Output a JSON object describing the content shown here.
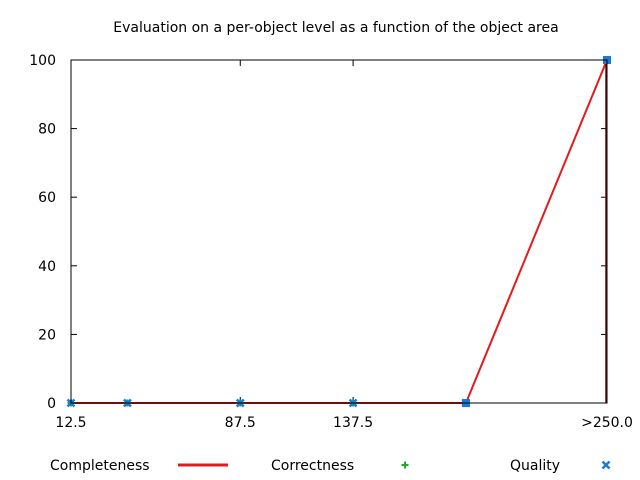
{
  "chart_data": {
    "type": "line",
    "title": "Evaluation on a per-object level as a function of the object area",
    "xlabel": "",
    "ylabel": "",
    "xlim": [
      12.5,
      250.0
    ],
    "ylim": [
      0,
      100
    ],
    "grid": false,
    "legend_position": "bottom",
    "x_ticks": [
      {
        "value": 12.5,
        "label": "12.5"
      },
      {
        "value": 87.5,
        "label": "87.5"
      },
      {
        "value": 137.5,
        "label": "137.5"
      },
      {
        "value": 250.0,
        "label": ">250.0"
      }
    ],
    "y_ticks": [
      0,
      20,
      40,
      60,
      80,
      100
    ],
    "x": [
      12.5,
      37.5,
      87.5,
      137.5,
      187.5,
      250.0
    ],
    "series": [
      {
        "name": "Completeness",
        "style": "line",
        "color": "#e41a1c",
        "values": [
          0,
          0,
          0,
          0,
          0,
          100
        ]
      },
      {
        "name": "Correctness",
        "style": "plus",
        "color": "#22aa22",
        "values": [
          0,
          0,
          0,
          0,
          0,
          100
        ]
      },
      {
        "name": "Quality",
        "style": "cross",
        "color": "#1a7ad4",
        "values": [
          0,
          0,
          0,
          0,
          0,
          100
        ]
      }
    ]
  }
}
